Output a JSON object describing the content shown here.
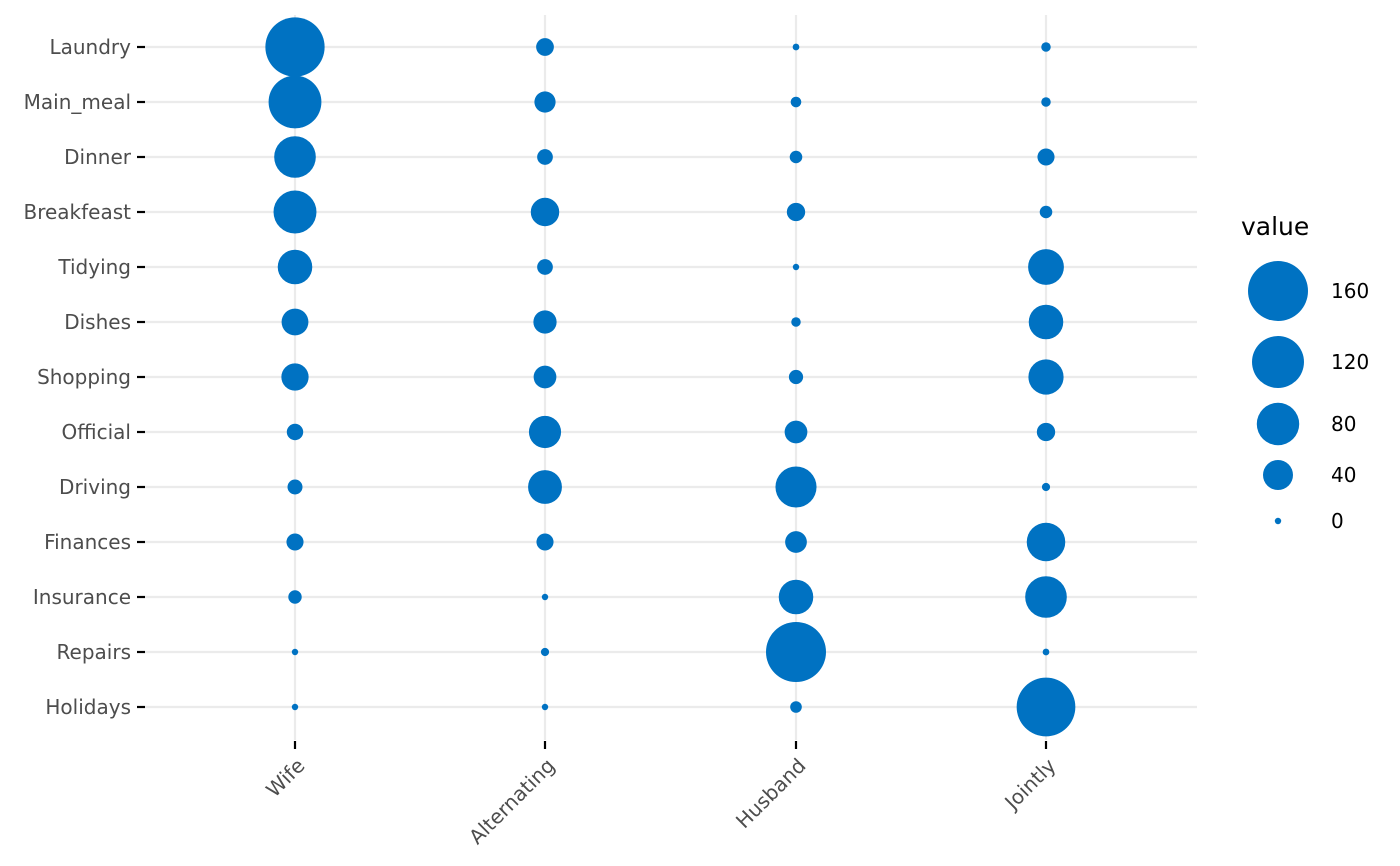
{
  "colors": {
    "point": "#0072c2",
    "grid": "#ebebeb",
    "axis_text": "#4d4d4d",
    "background": "#ffffff"
  },
  "legend": {
    "title": "value",
    "breaks": [
      160,
      120,
      80,
      40,
      0
    ],
    "position": "right"
  },
  "chart_data": {
    "type": "bubble",
    "title": "",
    "xlabel": "",
    "ylabel": "",
    "grid": true,
    "size_variable": "value",
    "x_categories": [
      "Wife",
      "Alternating",
      "Husband",
      "Jointly"
    ],
    "y_categories": [
      "Laundry",
      "Main_meal",
      "Dinner",
      "Breakfeast",
      "Tidying",
      "Dishes",
      "Shopping",
      "Official",
      "Driving",
      "Finances",
      "Insurance",
      "Repairs",
      "Holidays"
    ],
    "values": [
      [
        156,
        14,
        2,
        4
      ],
      [
        124,
        20,
        5,
        4
      ],
      [
        77,
        11,
        7,
        13
      ],
      [
        82,
        36,
        15,
        7
      ],
      [
        53,
        11,
        1,
        57
      ],
      [
        32,
        24,
        4,
        53
      ],
      [
        33,
        23,
        9,
        55
      ],
      [
        12,
        46,
        23,
        15
      ],
      [
        10,
        51,
        75,
        3
      ],
      [
        13,
        13,
        21,
        66
      ],
      [
        8,
        1,
        53,
        77
      ],
      [
        0,
        3,
        160,
        2
      ],
      [
        0,
        1,
        6,
        153
      ]
    ]
  }
}
